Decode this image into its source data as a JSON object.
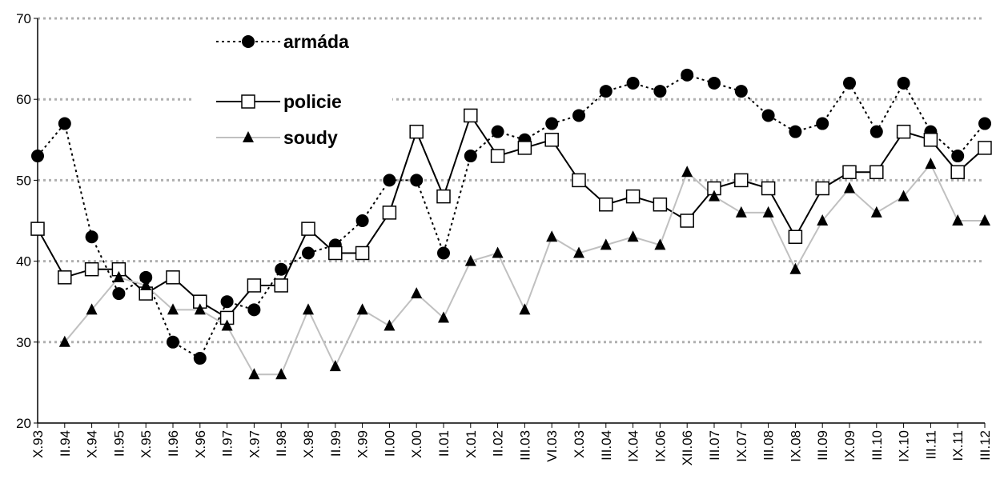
{
  "chart_data": {
    "type": "line",
    "categories": [
      "X.93",
      "II.94",
      "X.94",
      "II.95",
      "X.95",
      "II.96",
      "X.96",
      "II.97",
      "X.97",
      "II.98",
      "X.98",
      "II.99",
      "X.99",
      "II.00",
      "X.00",
      "II.01",
      "X.01",
      "II.02",
      "III.03",
      "VI.03",
      "X.03",
      "III.04",
      "IX.04",
      "IX.06",
      "XII.06",
      "III.07",
      "IX.07",
      "III.08",
      "IX.08",
      "III.09",
      "IX.09",
      "III.10",
      "IX.10",
      "III.11",
      "IX.11",
      "III.12"
    ],
    "series": [
      {
        "name": "armáda",
        "color": "#000000",
        "line_color": "#000000",
        "dash": "3,4",
        "marker": "circle",
        "values": [
          53,
          57,
          43,
          36,
          38,
          30,
          28,
          35,
          34,
          39,
          41,
          42,
          45,
          50,
          50,
          41,
          53,
          56,
          55,
          57,
          58,
          61,
          62,
          61,
          63,
          62,
          61,
          58,
          56,
          57,
          62,
          56,
          62,
          56,
          53,
          57
        ]
      },
      {
        "name": "policie",
        "color": "#000000",
        "line_color": "#000000",
        "dash": "none",
        "marker": "square",
        "values": [
          44,
          38,
          39,
          39,
          36,
          38,
          35,
          33,
          37,
          37,
          44,
          41,
          41,
          46,
          56,
          48,
          58,
          53,
          54,
          55,
          50,
          47,
          48,
          47,
          45,
          49,
          50,
          49,
          43,
          49,
          51,
          51,
          56,
          55,
          51,
          54
        ]
      },
      {
        "name": "soudy",
        "color": "#000000",
        "line_color": "#c0c0c0",
        "dash": "none",
        "marker": "triangle",
        "values": [
          null,
          30,
          34,
          38,
          37,
          34,
          34,
          32,
          26,
          26,
          34,
          27,
          34,
          32,
          36,
          33,
          40,
          41,
          34,
          43,
          41,
          42,
          43,
          42,
          51,
          48,
          46,
          46,
          39,
          45,
          49,
          46,
          48,
          52,
          45,
          45
        ]
      }
    ],
    "ylim": [
      20,
      70
    ],
    "yticks": [
      20,
      30,
      40,
      50,
      60,
      70
    ],
    "grid": true
  }
}
